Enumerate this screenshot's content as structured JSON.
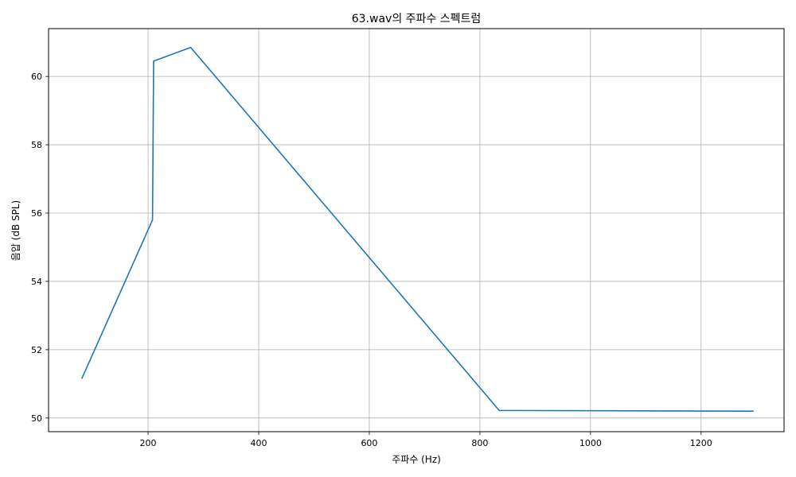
{
  "chart_data": {
    "type": "line",
    "title": "63.wav의 주파수 스펙트럼",
    "xlabel": "주파수 (Hz)",
    "ylabel": "음압 (dB SPL)",
    "xlim": [
      20,
      1350
    ],
    "ylim": [
      49.6,
      61.4
    ],
    "xticks": [
      200,
      400,
      600,
      800,
      1000,
      1200
    ],
    "yticks": [
      50,
      52,
      54,
      56,
      58,
      60
    ],
    "grid": true,
    "series": [
      {
        "color": "#1f77b4",
        "x": [
          80,
          208,
          210,
          277,
          835,
          1295
        ],
        "y": [
          51.15,
          55.8,
          60.45,
          60.85,
          50.22,
          50.2
        ]
      }
    ]
  }
}
